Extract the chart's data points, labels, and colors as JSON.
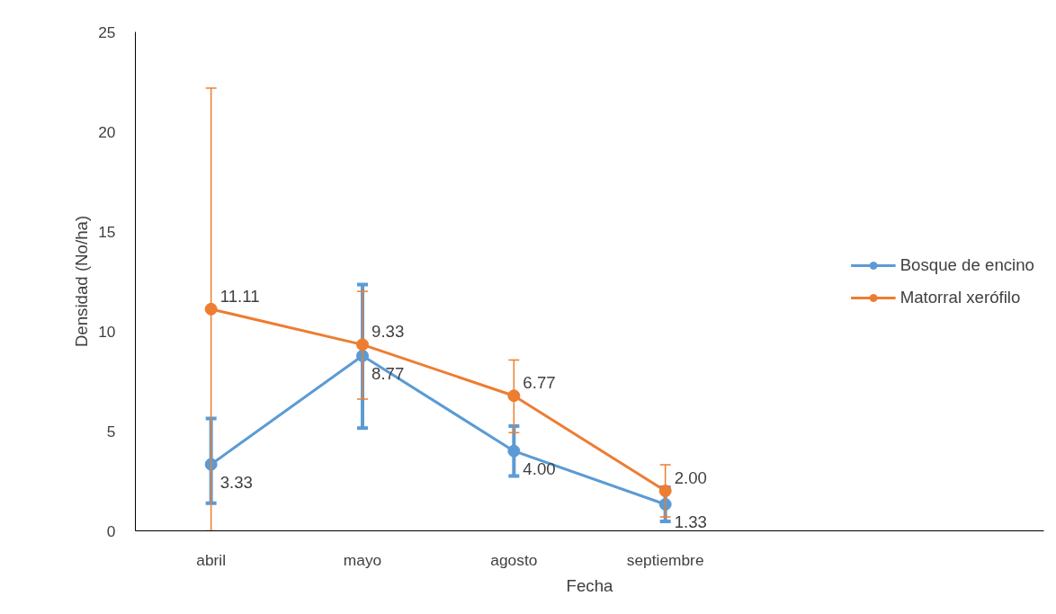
{
  "chart_data": {
    "type": "line",
    "xlabel": "Fecha",
    "ylabel": "Densidad (No/ha)",
    "categories": [
      "abril",
      "mayo",
      "agosto",
      "septiembre",
      null,
      null
    ],
    "series": [
      {
        "name": "Bosque de encino",
        "color": "#5b9bd5",
        "values": [
          3.33,
          8.77,
          4.0,
          1.33,
          null,
          null
        ],
        "value_labels": [
          "3.33",
          "8.77",
          "4.00",
          "1.33",
          null,
          null
        ],
        "errors": [
          [
            1.38,
            5.63
          ],
          [
            5.15,
            12.34
          ],
          [
            2.75,
            5.25
          ],
          [
            0.47,
            2.19
          ],
          null,
          null
        ]
      },
      {
        "name": "Matorral xerófilo",
        "color": "#ed7d31",
        "values": [
          11.11,
          9.33,
          6.77,
          2.0,
          null,
          null
        ],
        "value_labels": [
          "11.11",
          "9.33",
          "6.77",
          "2.00",
          null,
          null
        ],
        "errors": [
          [
            0,
            22.18
          ],
          [
            6.6,
            12.0
          ],
          [
            4.92,
            8.56
          ],
          [
            0.7,
            3.31
          ],
          null,
          null
        ]
      }
    ],
    "ylim": [
      0,
      25
    ],
    "yticks": [
      0,
      5,
      10,
      15,
      20,
      25
    ],
    "grid": false,
    "legend": "right",
    "marker": "circle",
    "line_style": "solid"
  }
}
